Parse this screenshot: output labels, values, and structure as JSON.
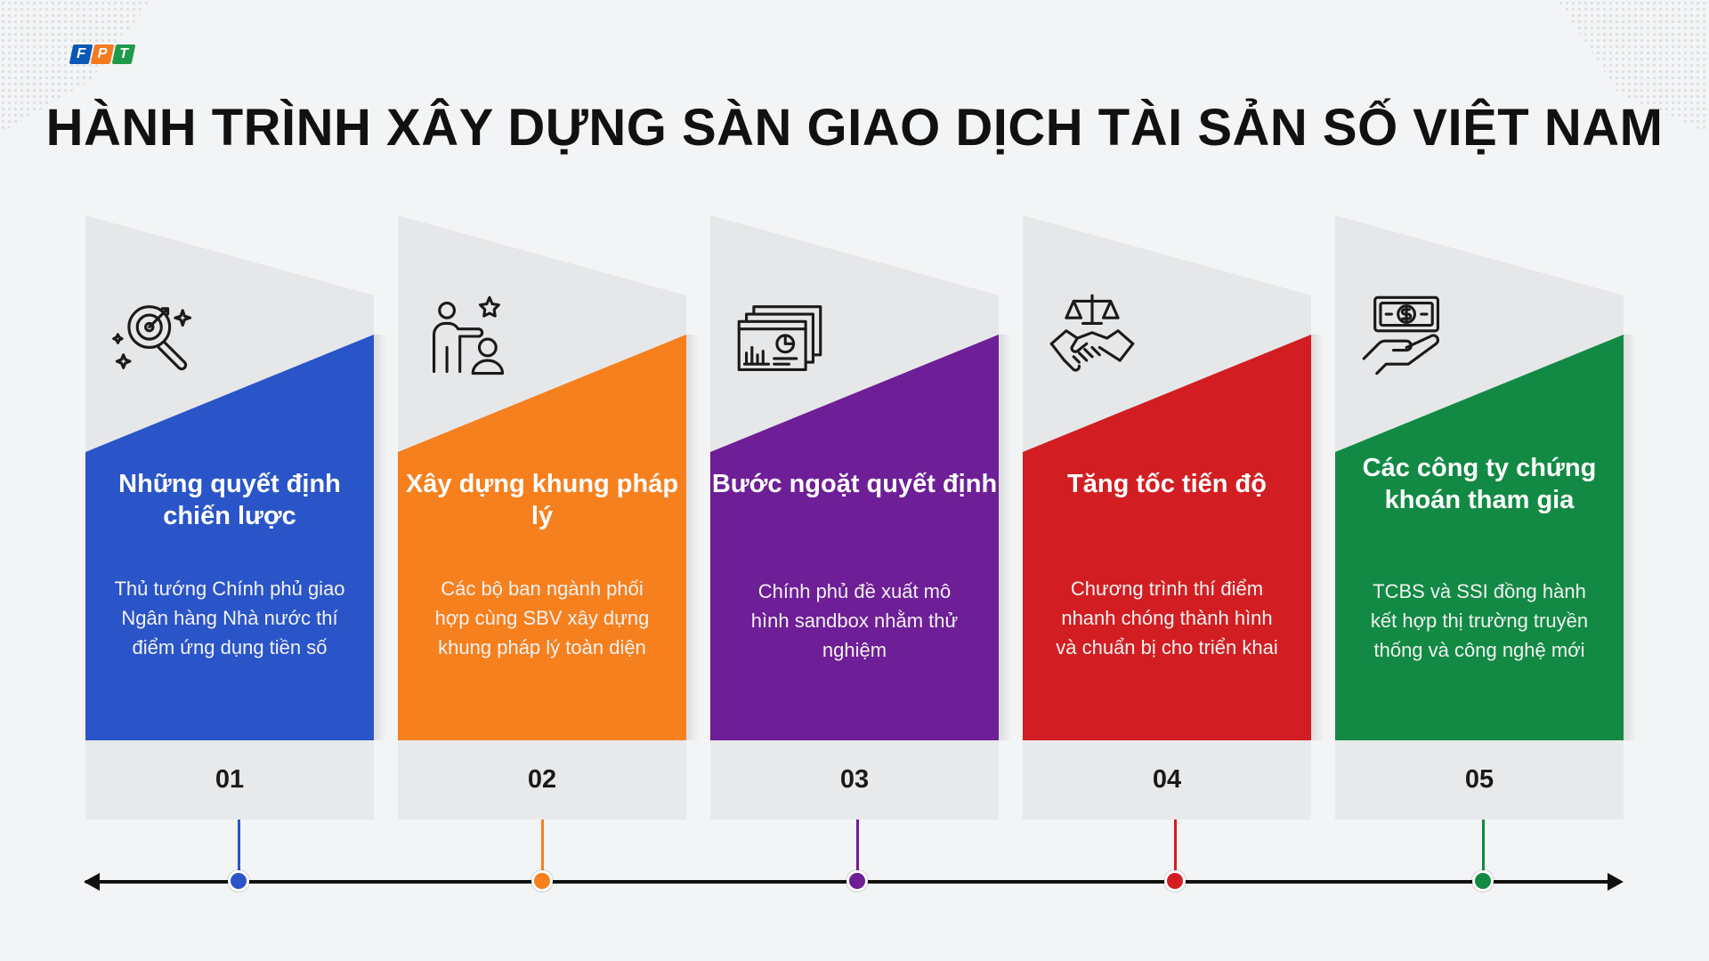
{
  "logo": {
    "letters": [
      "F",
      "P",
      "T"
    ],
    "colors": [
      "#0a58b5",
      "#f47a20",
      "#1f9a4a"
    ]
  },
  "title": "HÀNH TRÌNH XÂY DỰNG SÀN GIAO DỊCH TÀI SẢN SỐ VIỆT NAM",
  "steps": [
    {
      "number": "01",
      "heading": "Những quyết định chiến lược",
      "description": "Thủ tướng Chính phủ giao Ngân hàng Nhà nước thí điểm ứng dụng tiền số",
      "color": "#2a55c8",
      "icon": "strategy-target-magnifier-icon"
    },
    {
      "number": "02",
      "heading": "Xây dựng khung pháp lý",
      "description": "Các bộ ban ngành phối hợp cùng SBV xây dựng khung pháp lý toàn diện",
      "color": "#f6801e",
      "icon": "leader-team-star-icon"
    },
    {
      "number": "03",
      "heading": "Bước ngoặt quyết định",
      "description": "Chính phủ đề xuất mô hình sandbox nhằm thử nghiệm",
      "color": "#6e1e96",
      "icon": "report-documents-icon"
    },
    {
      "number": "04",
      "heading": "Tăng tốc tiến độ",
      "description": "Chương trình thí điểm nhanh chóng thành hình và chuẩn bị cho triển khai",
      "color": "#d21e22",
      "icon": "justice-scale-handshake-icon"
    },
    {
      "number": "05",
      "heading": "Các công ty chứng khoán tham gia",
      "description": "TCBS và SSI đồng hành kết hợp thị trường truyền thống và công nghệ mới",
      "color": "#128a44",
      "icon": "money-hand-icon"
    }
  ]
}
